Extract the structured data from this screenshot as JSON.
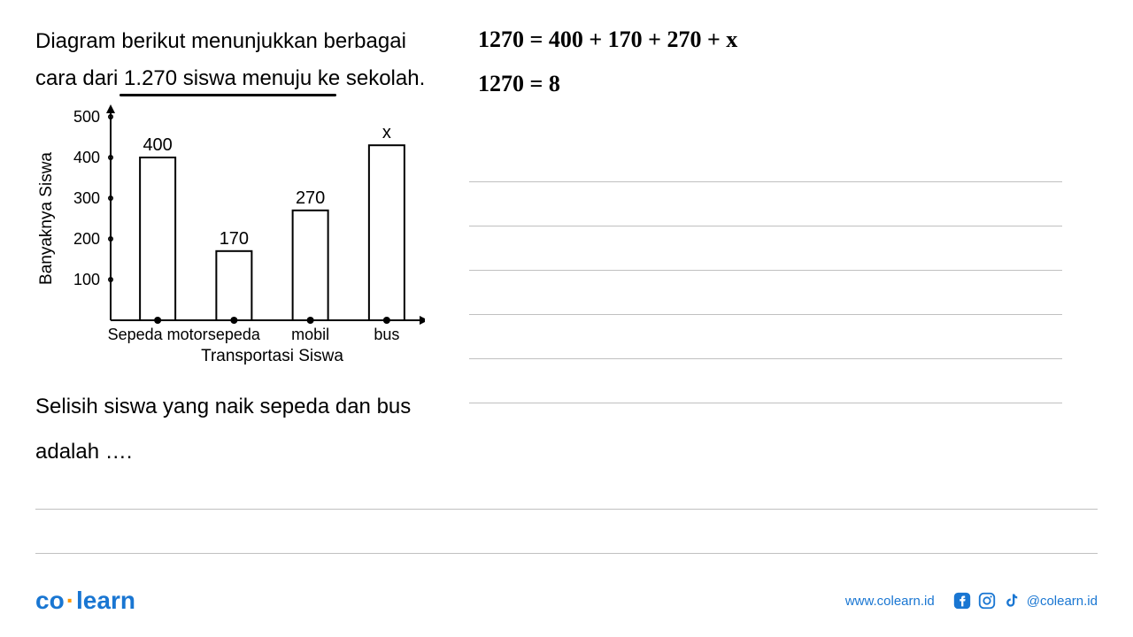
{
  "problem": {
    "line1": "Diagram berikut menunjukkan berbagai",
    "line2_part1": "cara dari ",
    "line2_highlight": "1.270",
    "line2_part2": " siswa menuju ke sekolah."
  },
  "chart": {
    "type": "bar",
    "ylabel": "Banyaknya Siswa",
    "xlabel": "Transportasi Siswa",
    "yticks": [
      100,
      200,
      300,
      400,
      500
    ],
    "ymax": 500,
    "categories": [
      "Sepeda motor",
      "sepeda",
      "mobil",
      "bus"
    ],
    "values": [
      400,
      170,
      270,
      430
    ],
    "value_labels": [
      "400",
      "170",
      "270",
      "x"
    ],
    "bar_fill": "#ffffff",
    "bar_stroke": "#000000",
    "axis_color": "#000000",
    "text_color": "#000000",
    "label_fontsize": 18,
    "tick_fontsize": 18,
    "axis_label_fontsize": 19
  },
  "question": {
    "line1": "Selisih siswa yang naik sepeda dan bus",
    "line2": "adalah …."
  },
  "handwriting": {
    "eq1": "1270  =  400 + 170 + 270 + x",
    "eq2": "1270   =    8"
  },
  "footer": {
    "logo_co": "co",
    "logo_learn": "learn",
    "website": "www.colearn.id",
    "handle": "@colearn.id"
  },
  "colors": {
    "brand_blue": "#1976d2",
    "brand_orange": "#ff9800",
    "ruled_line": "#c0c0c0"
  }
}
